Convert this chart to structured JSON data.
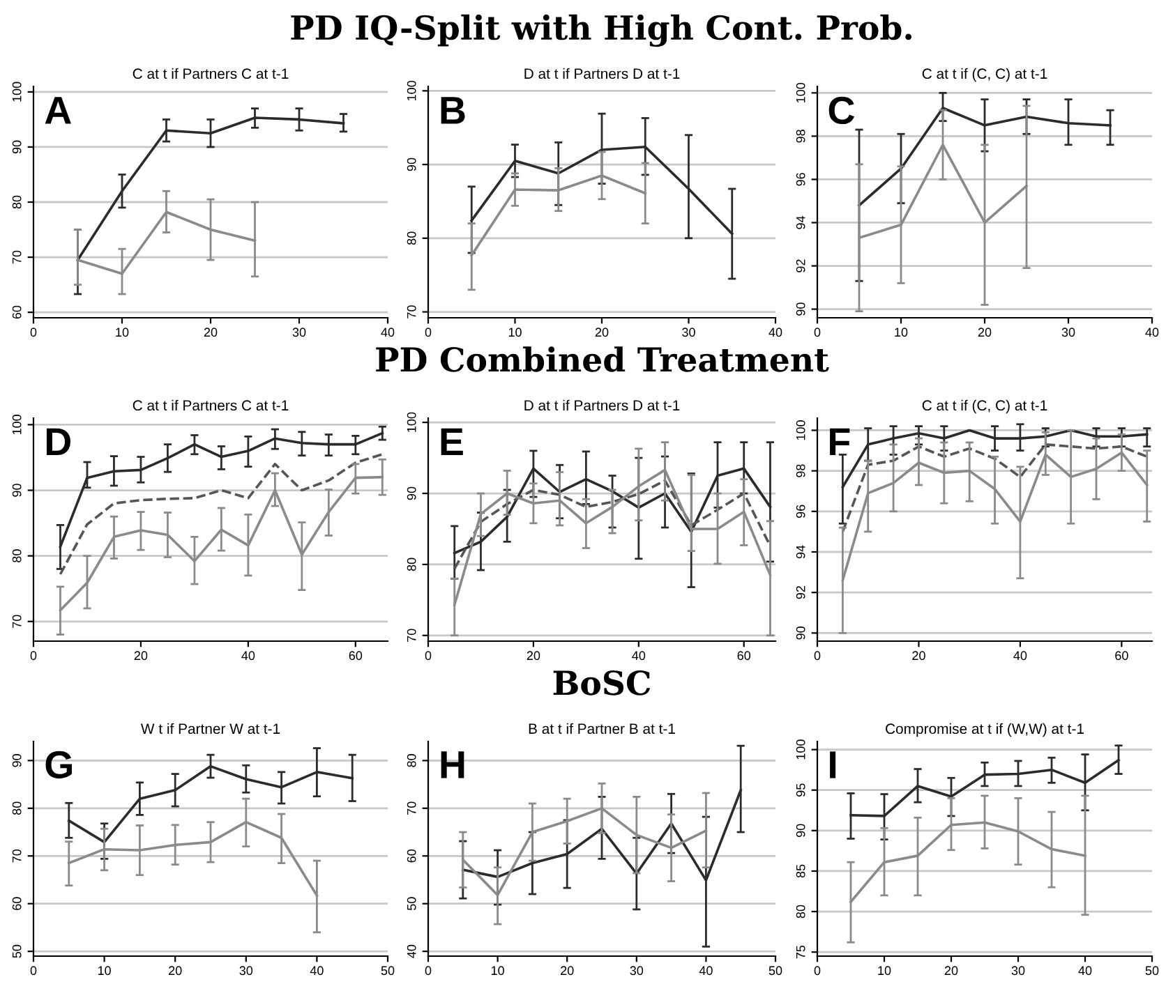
{
  "chart_data": [
    {
      "type": "line",
      "title": "C at t if Partners C at t-1",
      "annotations": [
        "A"
      ],
      "x": [
        5,
        10,
        15,
        20,
        25,
        30,
        35
      ],
      "xlim": [
        0,
        40
      ],
      "xticks": [
        0,
        10,
        20,
        30,
        40
      ],
      "ylim": [
        59,
        101
      ],
      "yticks": [
        60,
        70,
        80,
        90,
        100
      ],
      "grid": "y",
      "legend": false,
      "series": [
        {
          "color": "#2b2b2b",
          "line_style": "solid",
          "values": [
            69.5,
            82,
            93,
            92.5,
            95.3,
            95,
            94.3
          ],
          "errors": [
            [
              63.3,
              75
            ],
            [
              79,
              85
            ],
            [
              91,
              95
            ],
            [
              90,
              95
            ],
            [
              93.5,
              97
            ],
            [
              93,
              97
            ],
            [
              92.8,
              96
            ]
          ]
        },
        {
          "color": "#8a8a8a",
          "line_style": "solid",
          "values": [
            69.5,
            67,
            78.2,
            75,
            73,
            null,
            null
          ],
          "errors": [
            [
              65,
              75
            ],
            [
              63.3,
              71.5
            ],
            [
              74.5,
              82
            ],
            [
              69.5,
              80.5
            ],
            [
              66.5,
              80
            ],
            null,
            null
          ]
        }
      ]
    },
    {
      "type": "line",
      "subtitle": "PD IQ-Split with High Cont. Prob.",
      "title": "D at t if Partners D at t-1",
      "annotations": [
        "B"
      ],
      "x": [
        5,
        10,
        15,
        20,
        25,
        30,
        35
      ],
      "xlim": [
        0,
        40
      ],
      "xticks": [
        0,
        10,
        20,
        30,
        40
      ],
      "ylim": [
        69.2,
        100.6
      ],
      "yticks": [
        70,
        80,
        90,
        100
      ],
      "grid": "y",
      "legend": false,
      "series": [
        {
          "color": "#2b2b2b",
          "line_style": "solid",
          "values": [
            82.4,
            90.5,
            88.8,
            92,
            92.4,
            86.7,
            80.6
          ],
          "errors": [
            [
              78,
              87
            ],
            [
              88.3,
              92.7
            ],
            [
              84.5,
              93
            ],
            [
              87.4,
              96.9
            ],
            [
              88.6,
              96.3
            ],
            [
              80,
              94
            ],
            [
              74.5,
              86.7
            ]
          ]
        },
        {
          "color": "#8a8a8a",
          "line_style": "solid",
          "values": [
            77.7,
            86.6,
            86.5,
            88.5,
            86.1,
            null,
            null
          ],
          "errors": [
            [
              73,
              82
            ],
            [
              84.4,
              88.8
            ],
            [
              83.7,
              89.5
            ],
            [
              85.3,
              91.7
            ],
            [
              82,
              90.2
            ],
            null,
            null
          ]
        }
      ]
    },
    {
      "type": "line",
      "title": "C at t if (C, C) at t-1",
      "annotations": [
        "C"
      ],
      "x": [
        5,
        10,
        15,
        20,
        25,
        30,
        35
      ],
      "xlim": [
        0,
        40
      ],
      "xticks": [
        0,
        10,
        20,
        30,
        40
      ],
      "ylim": [
        89.6,
        100.3
      ],
      "yticks": [
        90,
        92,
        94,
        96,
        98,
        100
      ],
      "grid": "y",
      "legend": false,
      "series": [
        {
          "color": "#2b2b2b",
          "line_style": "solid",
          "values": [
            94.8,
            96.5,
            99.3,
            98.5,
            98.9,
            98.6,
            98.5
          ],
          "errors": [
            [
              91.3,
              98.3
            ],
            [
              94.9,
              98.1
            ],
            [
              98.7,
              100
            ],
            [
              97.3,
              99.7
            ],
            [
              98.1,
              99.7
            ],
            [
              97.6,
              99.7
            ],
            [
              97.6,
              99.2
            ]
          ]
        },
        {
          "color": "#8a8a8a",
          "line_style": "solid",
          "values": [
            93.3,
            93.9,
            97.6,
            94,
            95.7,
            null,
            null
          ],
          "errors": [
            [
              89.9,
              96.7
            ],
            [
              91.2,
              96.6
            ],
            [
              96,
              99.2
            ],
            [
              90.2,
              97.6
            ],
            [
              91.9,
              99.4
            ],
            null,
            null
          ]
        }
      ]
    },
    {
      "type": "line",
      "title": "C at t if Partners C at t-1",
      "annotations": [
        "D"
      ],
      "x": [
        5,
        10,
        15,
        20,
        25,
        30,
        35,
        40,
        45,
        50,
        55,
        60,
        65
      ],
      "xlim": [
        0,
        66
      ],
      "xticks": [
        0,
        20,
        40,
        60
      ],
      "ylim": [
        67,
        101
      ],
      "yticks": [
        70,
        80,
        90,
        100
      ],
      "grid": "y",
      "legend": false,
      "series": [
        {
          "color": "#2b2b2b",
          "line_style": "solid",
          "values": [
            81.4,
            91.9,
            92.9,
            93.1,
            94.9,
            97,
            95.1,
            96,
            97.9,
            97.2,
            97,
            97,
            98.7
          ],
          "errors": [
            [
              78,
              84.7
            ],
            [
              90.4,
              94.3
            ],
            [
              90.7,
              95.2
            ],
            [
              91.2,
              95.1
            ],
            [
              92.8,
              97
            ],
            [
              95.5,
              98.4
            ],
            [
              93.2,
              96.7
            ],
            [
              93.6,
              98.2
            ],
            [
              96.3,
              99.3
            ],
            [
              95.3,
              98.9
            ],
            [
              95.3,
              98.5
            ],
            [
              95.5,
              98.3
            ],
            [
              97.7,
              99.7
            ]
          ]
        },
        {
          "color": "#555555",
          "line_style": "dashed",
          "values": [
            77.2,
            84.8,
            88,
            88.5,
            88.7,
            88.8,
            90,
            88.8,
            94,
            90,
            91.5,
            94.2,
            95.5
          ]
        },
        {
          "color": "#8a8a8a",
          "line_style": "solid",
          "values": [
            71.7,
            75.9,
            82.9,
            83.9,
            83.2,
            79.2,
            84,
            81.6,
            90,
            80.2,
            86.7,
            91.9,
            92
          ],
          "errors": [
            [
              68,
              75.3
            ],
            [
              72,
              80
            ],
            [
              79.6,
              86
            ],
            [
              80.9,
              86.7
            ],
            [
              79.8,
              86.6
            ],
            [
              75.7,
              82.9
            ],
            [
              80.8,
              87.3
            ],
            [
              77,
              86.3
            ],
            [
              87.6,
              92.6
            ],
            [
              74.8,
              85.1
            ],
            [
              83.1,
              90.1
            ],
            [
              89.5,
              94
            ],
            [
              89.3,
              94.7
            ]
          ]
        }
      ]
    },
    {
      "type": "line",
      "subtitle": "PD Combined Treatment",
      "title": "D at t if Partners D at t-1",
      "annotations": [
        "E"
      ],
      "x": [
        5,
        10,
        15,
        20,
        25,
        30,
        35,
        40,
        45,
        50,
        55,
        60,
        65
      ],
      "xlim": [
        0,
        66
      ],
      "xticks": [
        0,
        20,
        40,
        60
      ],
      "ylim": [
        69.2,
        100.6
      ],
      "yticks": [
        70,
        80,
        90,
        100
      ],
      "grid": "y",
      "legend": false,
      "series": [
        {
          "color": "#2b2b2b",
          "line_style": "solid",
          "values": [
            81.6,
            83.2,
            86.7,
            93.5,
            90.2,
            92,
            90.3,
            88,
            90,
            84.6,
            92.5,
            93.5,
            88.1
          ],
          "errors": [
            [
              78,
              85.4
            ],
            [
              79.2,
              87.3
            ],
            [
              83.2,
              90.5
            ],
            [
              89.5,
              96
            ],
            [
              86.5,
              94
            ],
            [
              88.5,
              95.9
            ],
            [
              85.2,
              92.5
            ],
            [
              80.8,
              95
            ],
            [
              85.2,
              95.2
            ],
            [
              76.8,
              92.8
            ],
            [
              88,
              97.2
            ],
            [
              90,
              97.2
            ],
            [
              80.4,
              97.2
            ]
          ]
        },
        {
          "color": "#555555",
          "line_style": "dashed",
          "values": [
            79.4,
            86,
            88.5,
            90.5,
            89.8,
            88.1,
            88.8,
            89.9,
            91.8,
            85.5,
            87.7,
            90,
            82.6
          ]
        },
        {
          "color": "#8a8a8a",
          "line_style": "solid",
          "values": [
            74.3,
            87.1,
            90,
            88.6,
            89,
            85.8,
            88.1,
            91,
            93.3,
            85,
            85,
            87.4,
            78.5
          ],
          "errors": [
            [
              70,
              78
            ],
            [
              84,
              90
            ],
            [
              87,
              93.2
            ],
            [
              85.8,
              91.4
            ],
            [
              85.5,
              93
            ],
            [
              82.3,
              89.2
            ],
            [
              84.4,
              90.5
            ],
            [
              86.2,
              96.3
            ],
            [
              89,
              97.2
            ],
            [
              81.9,
              92.6
            ],
            [
              80.1,
              90
            ],
            [
              82.7,
              92
            ],
            [
              70,
              86.1
            ]
          ]
        }
      ]
    },
    {
      "type": "line",
      "title": "C at t if (C, C) at t-1",
      "annotations": [
        "F"
      ],
      "x": [
        5,
        10,
        15,
        20,
        25,
        30,
        35,
        40,
        45,
        50,
        55,
        60,
        65
      ],
      "xlim": [
        0,
        66
      ],
      "xticks": [
        0,
        20,
        40,
        60
      ],
      "ylim": [
        89.6,
        100.6
      ],
      "yticks": [
        90,
        92,
        94,
        96,
        98,
        100
      ],
      "grid": "y",
      "legend": false,
      "series": [
        {
          "color": "#2b2b2b",
          "line_style": "solid",
          "values": [
            97.2,
            99.3,
            99.6,
            99.85,
            99.6,
            100,
            99.6,
            99.6,
            99.7,
            100,
            99.7,
            99.7,
            99.8
          ],
          "errors": [
            [
              95.4,
              98.8
            ],
            [
              98.5,
              100.1
            ],
            [
              98.8,
              100.2
            ],
            [
              99.3,
              100.2
            ],
            [
              99,
              100.2
            ],
            null,
            [
              99,
              100.2
            ],
            [
              99,
              100.3
            ],
            [
              99.2,
              100.1
            ],
            null,
            [
              99.2,
              100.1
            ],
            [
              99.2,
              100.1
            ],
            [
              99.2,
              100.1
            ]
          ]
        },
        {
          "color": "#555555",
          "line_style": "dashed",
          "values": [
            95,
            98.3,
            98.5,
            99.2,
            98.7,
            99.1,
            98.6,
            97.7,
            99.3,
            99.2,
            99.1,
            99.2,
            98.7
          ]
        },
        {
          "color": "#8a8a8a",
          "line_style": "solid",
          "values": [
            92.6,
            96.9,
            97.4,
            98.4,
            97.9,
            98,
            97.1,
            95.5,
            98.8,
            97.7,
            98.1,
            98.9,
            97.3
          ],
          "errors": [
            [
              90,
              95.2
            ],
            [
              95,
              98.5
            ],
            [
              96,
              99.3
            ],
            [
              97.3,
              99.6
            ],
            [
              96.4,
              99.4
            ],
            [
              96.5,
              99.4
            ],
            [
              95.4,
              98.7
            ],
            [
              92.7,
              98.2
            ],
            [
              97.8,
              99.9
            ],
            [
              95.4,
              100
            ],
            [
              96.6,
              99.6
            ],
            [
              98,
              99.8
            ],
            [
              95.5,
              99
            ]
          ]
        }
      ]
    },
    {
      "type": "line",
      "title": "W t if Partner W at t-1",
      "annotations": [
        "G"
      ],
      "x": [
        5,
        10,
        15,
        20,
        25,
        30,
        35,
        40,
        45
      ],
      "xlim": [
        0,
        50
      ],
      "xticks": [
        0,
        10,
        20,
        30,
        40,
        50
      ],
      "ylim": [
        49,
        94
      ],
      "yticks": [
        50,
        60,
        70,
        80,
        90
      ],
      "grid": "y",
      "legend": false,
      "series": [
        {
          "color": "#2b2b2b",
          "line_style": "solid",
          "values": [
            77.4,
            72.9,
            82,
            83.8,
            88.8,
            86.1,
            84.4,
            87.6,
            86.3
          ],
          "errors": [
            [
              73.8,
              81.1
            ],
            [
              69.4,
              76.8
            ],
            [
              78.6,
              85.4
            ],
            [
              80.4,
              87.2
            ],
            [
              86.4,
              91.2
            ],
            [
              83.3,
              89
            ],
            [
              81,
              87.6
            ],
            [
              82.5,
              92.6
            ],
            [
              81.5,
              91.2
            ]
          ]
        },
        {
          "color": "#8a8a8a",
          "line_style": "solid",
          "values": [
            68.5,
            71.4,
            71.2,
            72.3,
            72.9,
            77.1,
            73.8,
            61.7,
            null
          ],
          "errors": [
            [
              63.8,
              73
            ],
            [
              67,
              75.7
            ],
            [
              66,
              76.4
            ],
            [
              68.2,
              76.5
            ],
            [
              68.7,
              77.1
            ],
            [
              72,
              82
            ],
            [
              68.5,
              78.8
            ],
            [
              54,
              69
            ],
            null
          ]
        }
      ]
    },
    {
      "type": "line",
      "subtitle": "BoSC",
      "title": "B at t if Partner B at t-1",
      "annotations": [
        "H"
      ],
      "x": [
        5,
        10,
        15,
        20,
        25,
        30,
        35,
        40,
        45
      ],
      "xlim": [
        0,
        50
      ],
      "xticks": [
        0,
        10,
        20,
        30,
        40,
        50
      ],
      "ylim": [
        39,
        84
      ],
      "yticks": [
        40,
        50,
        60,
        70,
        80
      ],
      "grid": "y",
      "legend": false,
      "series": [
        {
          "color": "#2b2b2b",
          "line_style": "solid",
          "values": [
            57.1,
            55.6,
            58.5,
            60.4,
            65.7,
            56.3,
            66.8,
            54.9,
            73.8
          ],
          "errors": [
            [
              51.1,
              63.1
            ],
            [
              49.8,
              61.2
            ],
            [
              52,
              65
            ],
            [
              53.3,
              67.5
            ],
            [
              59.4,
              72.4
            ],
            [
              48.8,
              63.8
            ],
            [
              60.6,
              73
            ],
            [
              41,
              68.2
            ],
            [
              65,
              83.1
            ]
          ]
        },
        {
          "color": "#8a8a8a",
          "line_style": "solid",
          "values": [
            59.2,
            51.8,
            65,
            67.3,
            70,
            64.4,
            61.7,
            65.3,
            null
          ],
          "errors": [
            [
              53.4,
              65
            ],
            [
              45.7,
              57.6
            ],
            [
              59,
              71
            ],
            [
              62.6,
              72
            ],
            [
              64.8,
              75.2
            ],
            [
              56.4,
              72.4
            ],
            [
              54.7,
              68.7
            ],
            [
              57.6,
              73.2
            ],
            null
          ]
        }
      ]
    },
    {
      "type": "line",
      "title": "Compromise at t if (W,W) at t-1",
      "annotations": [
        "I"
      ],
      "x": [
        5,
        10,
        15,
        20,
        25,
        30,
        35,
        40,
        45
      ],
      "xlim": [
        0,
        50
      ],
      "xticks": [
        0,
        10,
        20,
        30,
        40,
        50
      ],
      "ylim": [
        74.5,
        101
      ],
      "yticks": [
        75,
        80,
        85,
        90,
        95,
        100
      ],
      "grid": "y",
      "legend": false,
      "series": [
        {
          "color": "#2b2b2b",
          "line_style": "solid",
          "values": [
            91.9,
            91.8,
            95.5,
            94.2,
            96.9,
            97,
            97.5,
            95.9,
            98.7
          ],
          "errors": [
            [
              89,
              94.6
            ],
            [
              88.9,
              94.5
            ],
            [
              93.5,
              97.6
            ],
            [
              91.8,
              96.5
            ],
            [
              95.5,
              98.4
            ],
            [
              95.5,
              98.6
            ],
            [
              95.9,
              99
            ],
            [
              92.5,
              99.4
            ],
            [
              97,
              100.5
            ]
          ]
        },
        {
          "color": "#8a8a8a",
          "line_style": "solid",
          "values": [
            81.2,
            86.1,
            86.9,
            90.7,
            91,
            89.9,
            87.7,
            86.9,
            null
          ],
          "errors": [
            [
              76.2,
              86.1
            ],
            [
              82,
              90.3
            ],
            [
              82,
              91.6
            ],
            [
              87.6,
              94
            ],
            [
              87.8,
              94.3
            ],
            [
              85.8,
              94
            ],
            [
              83,
              92.3
            ],
            [
              79.6,
              94.3
            ],
            null
          ]
        }
      ]
    }
  ]
}
